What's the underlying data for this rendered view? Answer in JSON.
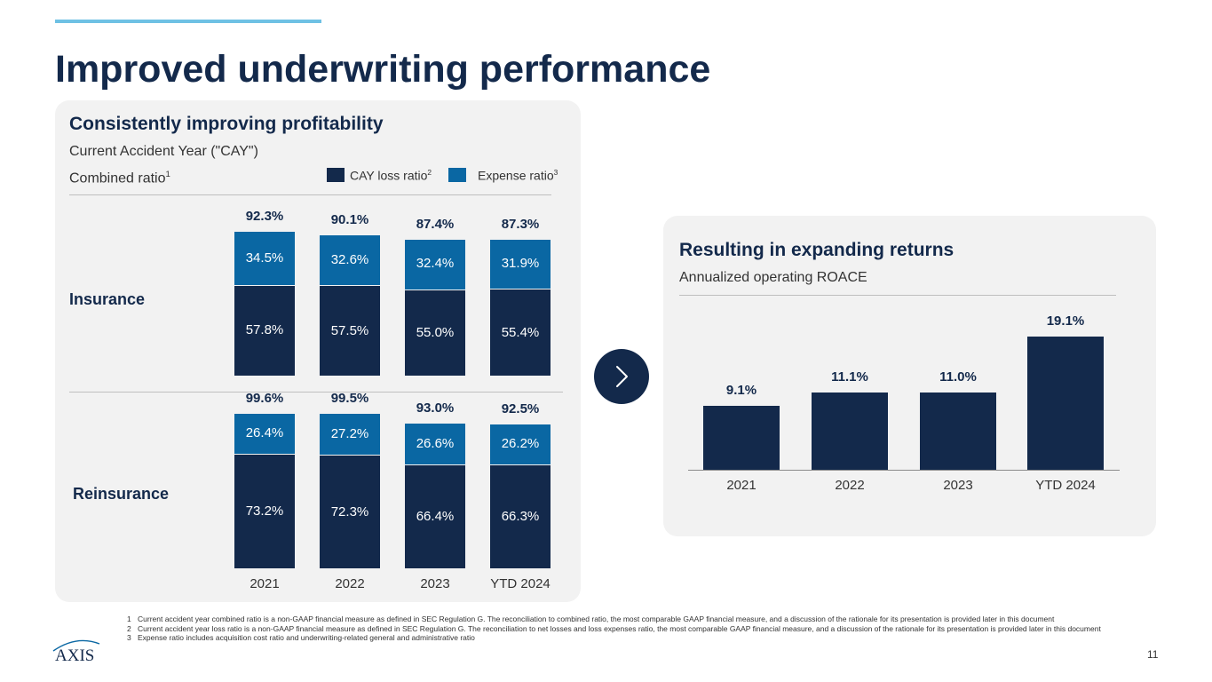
{
  "title": "Improved underwriting performance",
  "left_panel": {
    "heading": "Consistently improving profitability",
    "subheading": "Current Accident Year (\"CAY\")",
    "combined_label": "Combined ratio",
    "combined_sup": "1",
    "legend": {
      "cay_loss": "CAY loss ratio",
      "cay_loss_sup": "2",
      "expense": "Expense ratio",
      "expense_sup": "3"
    }
  },
  "right_panel": {
    "heading": "Resulting in expanding returns",
    "subheading": "Annualized operating ROACE"
  },
  "colors": {
    "navy": "#13294b",
    "blue": "#0a67a3",
    "panel_bg": "#f2f2f2",
    "accent": "#6ec1e4"
  },
  "chart_data": [
    {
      "type": "bar",
      "stacked": true,
      "title": "Insurance",
      "categories": [
        "2021",
        "2022",
        "2023",
        "YTD 2024"
      ],
      "series": [
        {
          "name": "CAY loss ratio",
          "values": [
            57.8,
            57.5,
            55.0,
            55.4
          ],
          "labels": [
            "57.8%",
            "57.5%",
            "55.0%",
            "55.4%"
          ]
        },
        {
          "name": "Expense ratio",
          "values": [
            34.5,
            32.6,
            32.4,
            31.9
          ],
          "labels": [
            "34.5%",
            "32.6%",
            "32.4%",
            "31.9%"
          ]
        }
      ],
      "totals": [
        "92.3%",
        "90.1%",
        "87.4%",
        "87.3%"
      ]
    },
    {
      "type": "bar",
      "stacked": true,
      "title": "Reinsurance",
      "categories": [
        "2021",
        "2022",
        "2023",
        "YTD 2024"
      ],
      "series": [
        {
          "name": "CAY loss ratio",
          "values": [
            73.2,
            72.3,
            66.4,
            66.3
          ],
          "labels": [
            "73.2%",
            "72.3%",
            "66.4%",
            "66.3%"
          ]
        },
        {
          "name": "Expense ratio",
          "values": [
            26.4,
            27.2,
            26.6,
            26.2
          ],
          "labels": [
            "26.4%",
            "27.2%",
            "26.6%",
            "26.2%"
          ]
        }
      ],
      "totals": [
        "99.6%",
        "99.5%",
        "93.0%",
        "92.5%"
      ]
    },
    {
      "type": "bar",
      "title": "Annualized operating ROACE",
      "categories": [
        "2021",
        "2022",
        "2023",
        "YTD 2024"
      ],
      "values": [
        9.1,
        11.1,
        11.0,
        19.1
      ],
      "labels": [
        "9.1%",
        "11.1%",
        "11.0%",
        "19.1%"
      ]
    }
  ],
  "footnotes": [
    {
      "num": "1",
      "text": "Current accident year combined ratio is a non-GAAP financial measure as defined in SEC Regulation G. The reconciliation to combined ratio, the most comparable GAAP financial measure, and a discussion of the rationale for its presentation is provided later in this document"
    },
    {
      "num": "2",
      "text": "Current accident year loss ratio is a non-GAAP financial measure as defined in SEC Regulation G. The reconciliation to net losses and loss expenses ratio, the most comparable GAAP financial measure, and a discussion of the rationale for its presentation is provided later in this document"
    },
    {
      "num": "3",
      "text": "Expense ratio includes acquisition cost ratio and underwriting-related general and administrative ratio"
    }
  ],
  "logo_text": "AXIS",
  "page_number": "11"
}
